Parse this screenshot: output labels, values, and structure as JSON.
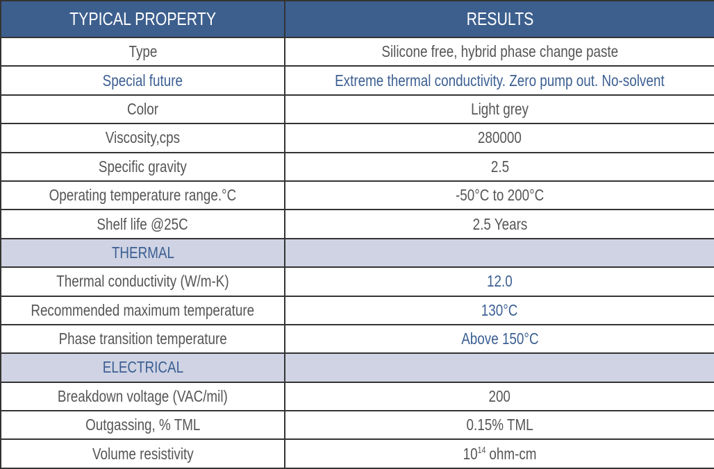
{
  "table": {
    "header": [
      "TYPICAL PROPERTY",
      "RESULTS"
    ],
    "rows": [
      [
        "Type",
        "Silicone free, hybrid phase change paste"
      ],
      [
        "Special future",
        "Extreme thermal conductivity. Zero pump out.  No-solvent"
      ],
      [
        "Color",
        "Light grey"
      ],
      [
        "Viscosity,cps",
        "280000"
      ],
      [
        "Specific gravity",
        "2.5"
      ],
      [
        "Operating temperature range.°C",
        "-50°C  to 200°C"
      ],
      [
        "Shelf life @25C",
        "2.5 Years"
      ],
      [
        "THERMAL",
        null
      ],
      [
        "Thermal conductivity (W/m-K)",
        "12.0"
      ],
      [
        "Recommended maximum temperature",
        "130°C"
      ],
      [
        "Phase transition temperature",
        "Above 150°C"
      ],
      [
        "ELECTRICAL",
        null
      ],
      [
        "Breakdown voltage   (VAC/mil)",
        "200"
      ],
      [
        "Outgassing, % TML",
        "0.15% TML"
      ],
      [
        "Volume resistivity",
        [
          "10",
          "14",
          "ohm-cm"
        ]
      ]
    ]
  }
}
